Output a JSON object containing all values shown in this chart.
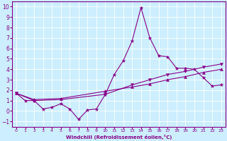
{
  "xlabel": "Windchill (Refroidissement éolien,°C)",
  "background_color": "#cceeff",
  "line_color": "#880088",
  "xlim": [
    -0.5,
    23.5
  ],
  "ylim": [
    -1.5,
    10.5
  ],
  "xticks": [
    0,
    1,
    2,
    3,
    4,
    5,
    6,
    7,
    8,
    9,
    10,
    11,
    12,
    13,
    14,
    15,
    16,
    17,
    18,
    19,
    20,
    21,
    22,
    23
  ],
  "yticks": [
    -1,
    0,
    1,
    2,
    3,
    4,
    5,
    6,
    7,
    8,
    9,
    10
  ],
  "series1_x": [
    0,
    1,
    2,
    3,
    4,
    5,
    6,
    7,
    8,
    9,
    10,
    11,
    12,
    13,
    14,
    15,
    16,
    17,
    18,
    19,
    20,
    21,
    22,
    23
  ],
  "series1_y": [
    1.7,
    1.0,
    1.0,
    0.2,
    0.35,
    0.7,
    0.2,
    -0.8,
    0.1,
    0.2,
    1.6,
    3.5,
    4.8,
    6.7,
    9.9,
    7.0,
    5.3,
    5.2,
    4.1,
    4.1,
    4.0,
    3.2,
    2.4,
    2.5
  ],
  "series2_x": [
    0,
    2,
    5,
    10,
    13,
    15,
    17,
    19,
    21,
    23
  ],
  "series2_y": [
    1.7,
    1.0,
    1.1,
    1.6,
    2.5,
    3.0,
    3.5,
    3.8,
    4.2,
    4.5
  ],
  "series3_x": [
    0,
    2,
    5,
    10,
    13,
    15,
    17,
    19,
    21,
    23
  ],
  "series3_y": [
    1.7,
    1.1,
    1.2,
    1.9,
    2.3,
    2.6,
    3.0,
    3.3,
    3.7,
    4.0
  ]
}
